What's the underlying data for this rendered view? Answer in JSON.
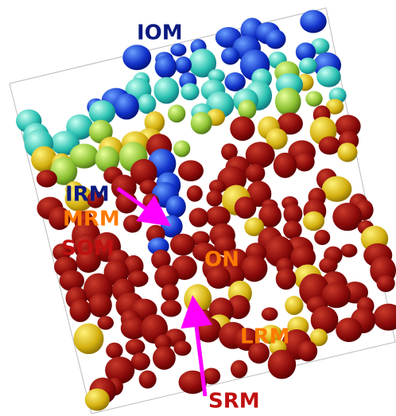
{
  "labels": {
    "iom": "IOM",
    "irm": "IRM",
    "mrm": "MRM",
    "som": "SOM",
    "on": "ON",
    "lrm": "LRM",
    "srm": "SRM"
  }
}
